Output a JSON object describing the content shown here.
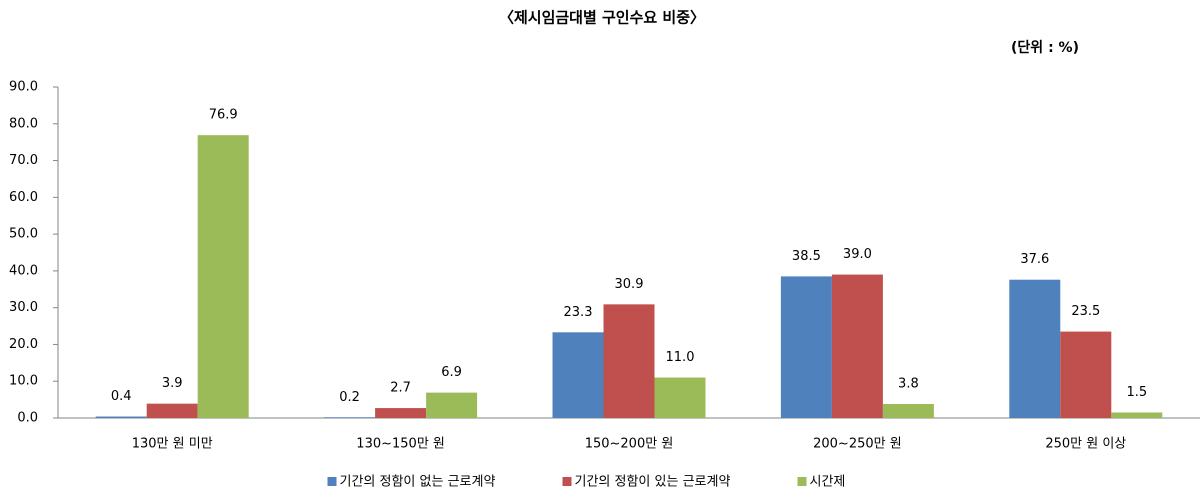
{
  "chart_data": {
    "type": "bar",
    "title": "〈제시임금대별 구인수요 비중〉",
    "unit": "(단위 : %)",
    "categories": [
      "130만 원 미만",
      "130~150만 원",
      "150~200만 원",
      "200~250만 원",
      "250만 원 이상"
    ],
    "series": [
      {
        "name": "기간의 정함이 없는 근로계약",
        "color": "#4f81bd",
        "values": [
          0.4,
          0.2,
          23.3,
          38.5,
          37.6
        ],
        "value_labels": [
          "0.4",
          "0.2",
          "23.3",
          "38.5",
          "37.6"
        ]
      },
      {
        "name": "기간의 정함이 있는 근로계약",
        "color": "#c0504d",
        "values": [
          3.9,
          2.7,
          30.9,
          39.0,
          23.5
        ],
        "value_labels": [
          "3.9",
          "2.7",
          "30.9",
          "39.0",
          "23.5"
        ]
      },
      {
        "name": "시간제",
        "color": "#9bbb59",
        "values": [
          76.9,
          6.9,
          11.0,
          3.8,
          1.5
        ],
        "value_labels": [
          "76.9",
          "6.9",
          "11.0",
          "3.8",
          "1.5"
        ]
      }
    ],
    "ylim": [
      0,
      90
    ],
    "yticks": [
      {
        "value": 0,
        "label": "0.0"
      },
      {
        "value": 10,
        "label": "10.0"
      },
      {
        "value": 20,
        "label": "20.0"
      },
      {
        "value": 30,
        "label": "30.0"
      },
      {
        "value": 40,
        "label": "40.0"
      },
      {
        "value": 50,
        "label": "50.0"
      },
      {
        "value": 60,
        "label": "60.0"
      },
      {
        "value": 70,
        "label": "70.0"
      },
      {
        "value": 80,
        "label": "80.0"
      },
      {
        "value": 90,
        "label": "90.0"
      }
    ],
    "grid": false,
    "legend": "bottom"
  }
}
